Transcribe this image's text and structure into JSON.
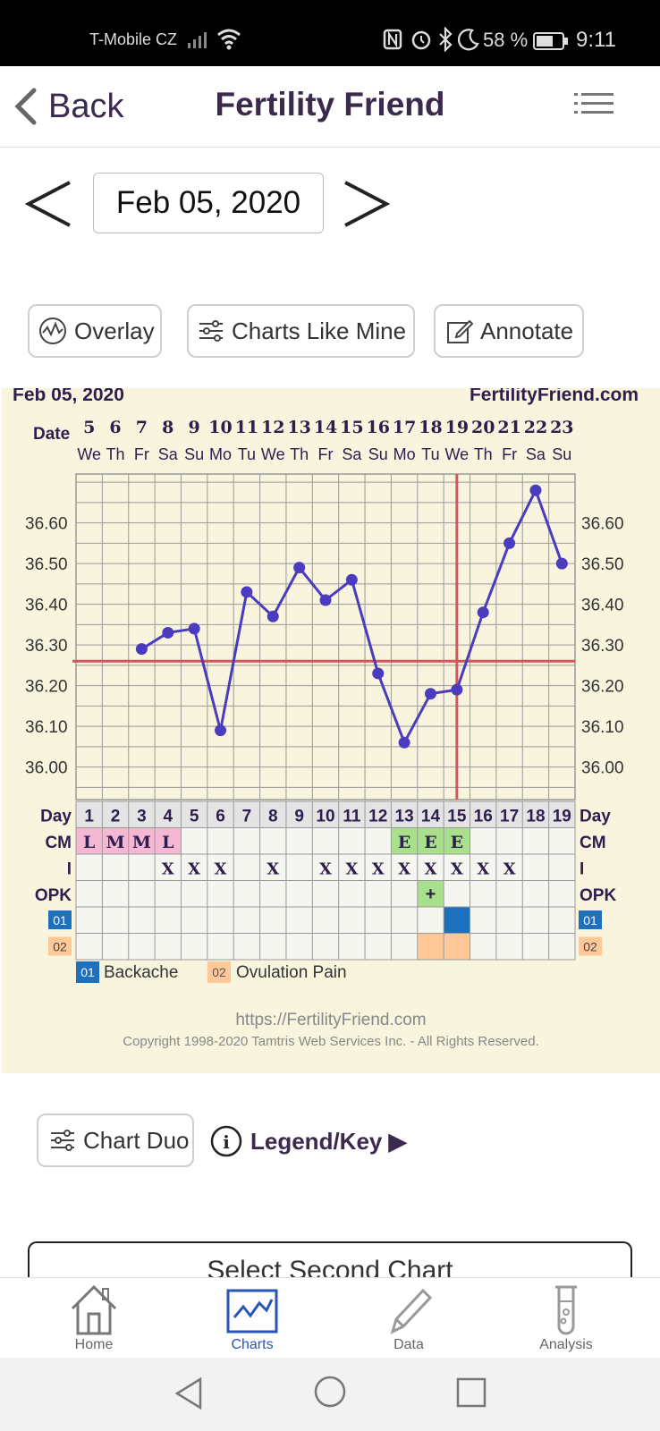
{
  "status_bar": {
    "carrier": "T-Mobile CZ",
    "battery": "58 %",
    "time": "9:11"
  },
  "header": {
    "back_label": "Back",
    "title": "Fertility Friend"
  },
  "date_nav": {
    "current_date": "Feb 05, 2020"
  },
  "actions": {
    "overlay": "Overlay",
    "charts_like_mine": "Charts Like Mine",
    "annotate": "Annotate"
  },
  "chart_panel": {
    "date": "Feb 05, 2020",
    "site": "FertilityFriend.com",
    "url": "https://FertilityFriend.com",
    "copyright": "Copyright 1998-2020 Tamtris Web Services Inc. - All Rights Reserved.",
    "legend": [
      {
        "code": "01",
        "label": "Backache",
        "color": "#1f6fbf"
      },
      {
        "code": "02",
        "label": "Ovulation Pain",
        "color": "#ffc898"
      }
    ]
  },
  "chart_data": {
    "type": "line",
    "title": "",
    "row_labels": {
      "date": "Date",
      "day": "Day",
      "cm": "CM",
      "i": "I",
      "opk": "OPK"
    },
    "dates": [
      "5",
      "6",
      "7",
      "8",
      "9",
      "10",
      "11",
      "12",
      "13",
      "14",
      "15",
      "16",
      "17",
      "18",
      "19",
      "20",
      "21",
      "22",
      "23"
    ],
    "weekdays": [
      "We",
      "Th",
      "Fr",
      "Sa",
      "Su",
      "Mo",
      "Tu",
      "We",
      "Th",
      "Fr",
      "Sa",
      "Su",
      "Mo",
      "Tu",
      "We",
      "Th",
      "Fr",
      "Sa",
      "Su"
    ],
    "cycle_days": [
      "1",
      "2",
      "3",
      "4",
      "5",
      "6",
      "7",
      "8",
      "9",
      "10",
      "11",
      "12",
      "13",
      "14",
      "15",
      "16",
      "17",
      "18",
      "19"
    ],
    "y_ticks": [
      "36.60",
      "36.50",
      "36.40",
      "36.30",
      "36.20",
      "36.10",
      "36.00"
    ],
    "ylim": [
      35.92,
      36.72
    ],
    "temperatures": [
      null,
      null,
      36.29,
      36.33,
      36.34,
      36.09,
      36.43,
      36.37,
      36.49,
      36.41,
      36.46,
      36.23,
      36.06,
      36.18,
      36.19,
      36.38,
      36.55,
      36.68,
      36.5
    ],
    "coverline": 36.26,
    "ovulation_day_index": 14,
    "cm": [
      "L",
      "M",
      "M",
      "L",
      "",
      "",
      "",
      "",
      "",
      "",
      "",
      "",
      "E",
      "E",
      "E",
      "",
      "",
      "",
      ""
    ],
    "intercourse": [
      "",
      "",
      "",
      "X",
      "X",
      "X",
      "",
      "X",
      "",
      "X",
      "X",
      "X",
      "X",
      "X",
      "X",
      "X",
      "X",
      "",
      ""
    ],
    "opk": [
      "",
      "",
      "",
      "",
      "",
      "",
      "",
      "",
      "",
      "",
      "",
      "",
      "",
      "+",
      "",
      "",
      "",
      "",
      ""
    ],
    "symptom_01": [
      false,
      false,
      false,
      false,
      false,
      false,
      false,
      false,
      false,
      false,
      false,
      false,
      false,
      false,
      true,
      false,
      false,
      false,
      false
    ],
    "symptom_02": [
      false,
      false,
      false,
      false,
      false,
      false,
      false,
      false,
      false,
      false,
      false,
      false,
      false,
      true,
      true,
      false,
      false,
      false,
      false
    ],
    "colors": {
      "line": "#4a3bbf",
      "coverline": "#d9535a",
      "cm_pink": "#f4b8d2",
      "cm_green": "#a8e08c",
      "opk_green": "#a8e08c",
      "grid": "#9a9a9a",
      "text": "#2e1e4e"
    },
    "grid": true
  },
  "bottom": {
    "chart_duo": "Chart Duo",
    "legend_key": "Legend/Key ▶",
    "select_second": "Select Second Chart"
  },
  "tabs": [
    {
      "label": "Home",
      "icon": "home-icon",
      "active": false
    },
    {
      "label": "Charts",
      "icon": "chart-icon",
      "active": true
    },
    {
      "label": "Data",
      "icon": "pencil-icon",
      "active": false
    },
    {
      "label": "Analysis",
      "icon": "test-tube-icon",
      "active": false
    }
  ]
}
